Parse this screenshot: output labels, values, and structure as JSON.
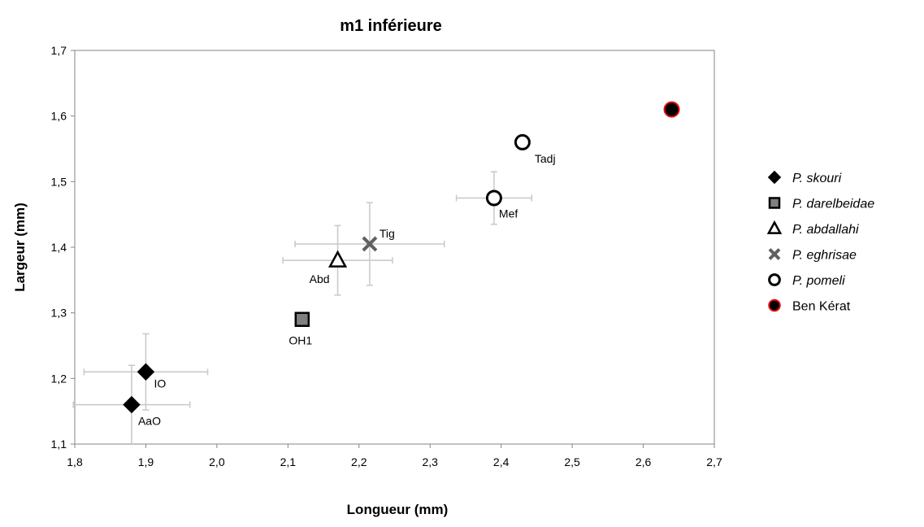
{
  "chart_data": {
    "type": "scatter",
    "title": "m1 inférieure",
    "xlabel": "Longueur (mm)",
    "ylabel": "Largeur (mm)",
    "xlim": [
      1.8,
      2.7
    ],
    "ylim": [
      1.1,
      1.7
    ],
    "xticks": [
      1.8,
      1.9,
      2.0,
      2.1,
      2.2,
      2.3,
      2.4,
      2.5,
      2.6,
      2.7
    ],
    "yticks": [
      1.1,
      1.2,
      1.3,
      1.4,
      1.5,
      1.6,
      1.7
    ],
    "xtick_labels": [
      "1,8",
      "1,9",
      "2,0",
      "2,1",
      "2,2",
      "2,3",
      "2,4",
      "2,5",
      "2,6",
      "2,7"
    ],
    "ytick_labels": [
      "1,1",
      "1,2",
      "1,3",
      "1,4",
      "1,5",
      "1,6",
      "1,7"
    ],
    "grid": false,
    "legend_position": "right",
    "series": [
      {
        "name": "P. skouri",
        "marker": "diamond",
        "color": "#000000",
        "points": [
          {
            "label": "IO",
            "x": 1.9,
            "y": 1.21,
            "xerr": 0.087,
            "yerr": 0.058
          },
          {
            "label": "AaO",
            "x": 1.88,
            "y": 1.16,
            "xerr": 0.082,
            "yerr": 0.06
          }
        ]
      },
      {
        "name": "P. darelbeidae",
        "marker": "square",
        "color": "#808080",
        "points": [
          {
            "label": "OH1",
            "x": 2.12,
            "y": 1.29
          }
        ]
      },
      {
        "name": "P. abdallahi",
        "marker": "triangle",
        "color": "#000000",
        "points": [
          {
            "label": "Abd",
            "x": 2.17,
            "y": 1.38,
            "xerr": 0.077,
            "yerr": 0.053
          }
        ]
      },
      {
        "name": "P. eghrisae",
        "marker": "x",
        "color": "#606060",
        "points": [
          {
            "label": "Tig",
            "x": 2.215,
            "y": 1.405,
            "xerr": 0.105,
            "yerr": 0.063
          }
        ]
      },
      {
        "name": "P. pomeli",
        "marker": "circle-open",
        "color": "#000000",
        "points": [
          {
            "label": "Mef",
            "x": 2.39,
            "y": 1.475,
            "xerr": 0.053,
            "yerr": 0.04
          },
          {
            "label": "Tadj",
            "x": 2.43,
            "y": 1.56
          }
        ]
      },
      {
        "name": "Ben Kérat",
        "marker": "circle-filled",
        "color": "#000000",
        "edge_color": "#e01010",
        "points": [
          {
            "label": "",
            "x": 2.64,
            "y": 1.61
          }
        ]
      }
    ]
  }
}
